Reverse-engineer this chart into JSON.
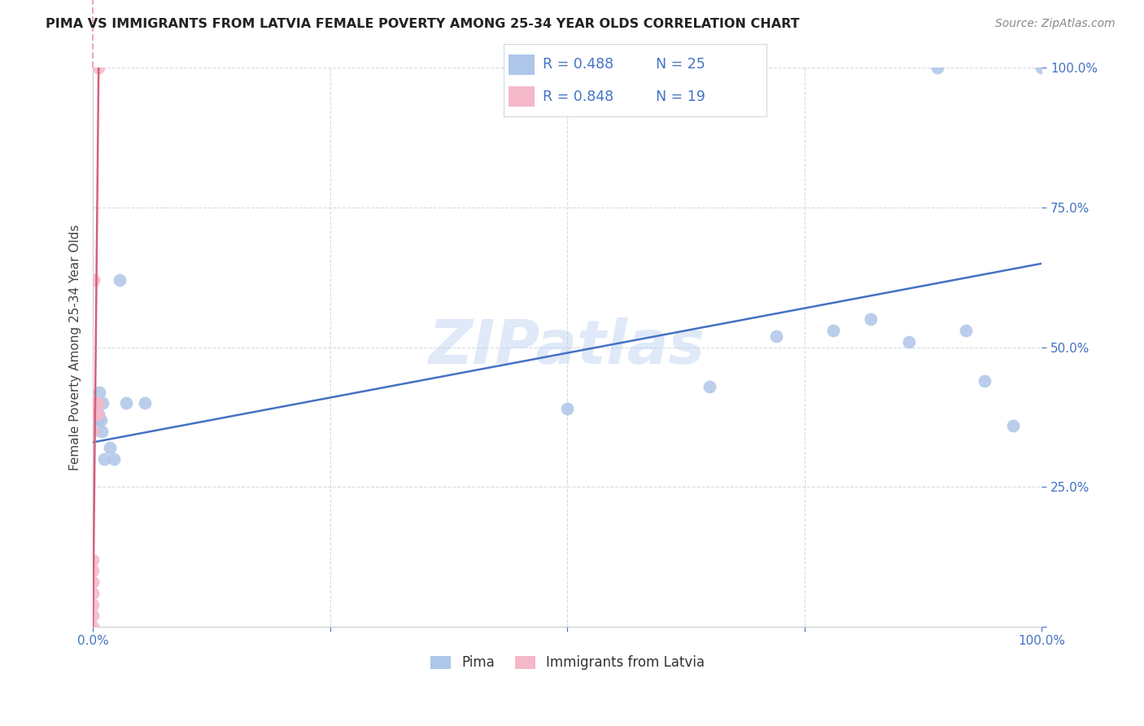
{
  "title": "PIMA VS IMMIGRANTS FROM LATVIA FEMALE POVERTY AMONG 25-34 YEAR OLDS CORRELATION CHART",
  "source": "Source: ZipAtlas.com",
  "ylabel": "Female Poverty Among 25-34 Year Olds",
  "pima_color": "#aec6e8",
  "latvia_color": "#f4b8c8",
  "pima_line_color": "#4472c4",
  "latvia_line_color": "#d4607a",
  "latvia_dash_color": "#f0a8bc",
  "watermark": "ZIPatlas",
  "legend_R_pima": "0.488",
  "legend_N_pima": "25",
  "legend_R_latvia": "0.848",
  "legend_N_latvia": "19",
  "pima_x": [
    0.003,
    0.004,
    0.005,
    0.006,
    0.007,
    0.008,
    0.009,
    0.01,
    0.012,
    0.018,
    0.022,
    0.028,
    0.035,
    0.055,
    0.5,
    0.65,
    0.72,
    0.78,
    0.82,
    0.86,
    0.89,
    0.92,
    0.94,
    0.97,
    1.0
  ],
  "pima_y": [
    0.38,
    0.4,
    0.37,
    0.38,
    0.42,
    0.37,
    0.35,
    0.4,
    0.3,
    0.32,
    0.3,
    0.62,
    0.4,
    0.4,
    0.39,
    0.43,
    0.52,
    0.53,
    0.55,
    0.51,
    1.0,
    0.53,
    0.44,
    0.36,
    1.0
  ],
  "latvia_x": [
    0.0,
    0.0,
    0.0,
    0.0,
    0.0,
    0.0,
    0.0,
    0.0,
    0.0,
    0.0,
    0.001,
    0.001,
    0.002,
    0.003,
    0.004,
    0.004,
    0.005,
    0.005,
    0.006
  ],
  "latvia_y": [
    0.0,
    0.02,
    0.04,
    0.06,
    0.08,
    0.1,
    0.12,
    0.35,
    0.38,
    0.4,
    0.38,
    0.62,
    0.38,
    0.4,
    0.38,
    0.4,
    0.38,
    0.4,
    1.0
  ],
  "pima_line_x0": 0.0,
  "pima_line_x1": 1.0,
  "pima_line_y0": 0.33,
  "pima_line_y1": 0.65,
  "latvia_line_x0": 0.0,
  "latvia_line_x1": 0.006,
  "latvia_line_y0": 0.0,
  "latvia_line_y1": 1.0,
  "xlim": [
    0.0,
    1.0
  ],
  "ylim": [
    0.0,
    1.0
  ],
  "xticks": [
    0.0,
    0.25,
    0.5,
    0.75,
    1.0
  ],
  "yticks": [
    0.0,
    0.25,
    0.5,
    0.75,
    1.0
  ]
}
